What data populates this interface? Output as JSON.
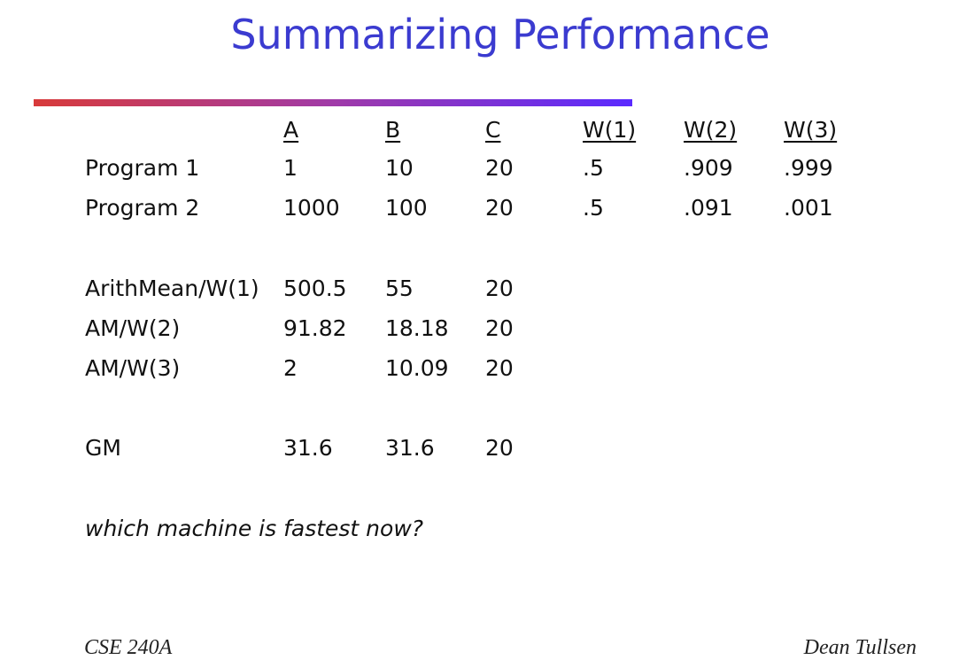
{
  "title": "Summarizing Performance",
  "table": {
    "header": [
      "A",
      "B",
      "C",
      "W(1)",
      "W(2)",
      "W(3)"
    ],
    "groups": [
      [
        [
          "Program 1",
          "1",
          "10",
          "20",
          ".5",
          ".909",
          ".999"
        ],
        [
          "Program 2",
          "1000",
          "100",
          "20",
          ".5",
          ".091",
          ".001"
        ]
      ],
      [
        [
          "ArithMean/W(1)",
          "500.5",
          "55",
          "20"
        ],
        [
          "AM/W(2)",
          "91.82",
          "18.18",
          "20"
        ],
        [
          "AM/W(3)",
          "2",
          "10.09",
          "20"
        ]
      ],
      [
        [
          "GM",
          "31.6",
          "31.6",
          "20"
        ]
      ]
    ]
  },
  "question": "which machine is fastest now?",
  "footer": {
    "left": "CSE 240A",
    "right": "Dean Tullsen"
  }
}
